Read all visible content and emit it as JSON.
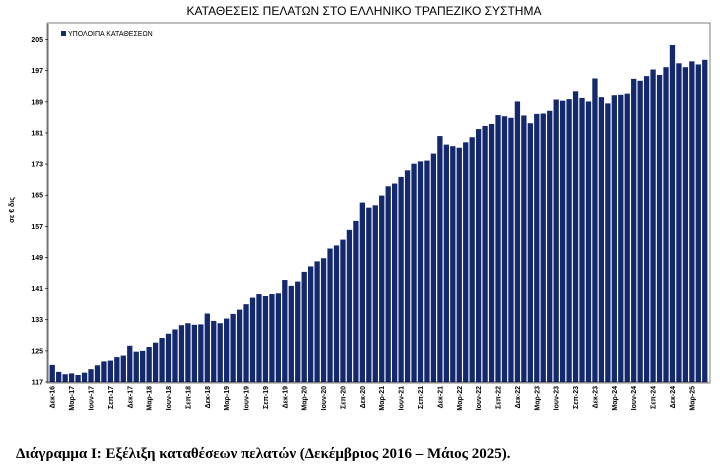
{
  "caption": "Διάγραμμα Ι: Εξέλιξη καταθέσεων πελατών (Δεκέμβριος 2016 – Μάιος 2025).",
  "colors": {
    "bar": "#14286e",
    "frame": "#7f7f7f",
    "axis": "#000000"
  },
  "chart_data": {
    "type": "bar",
    "title": "ΚΑΤΑΘΕΣΕΙΣ ΠΕΛΑΤΩΝ ΣΤΟ ΕΛΛΗΝΙΚΟ ΤΡΑΠΕΖΙΚΟ ΣΥΣΤΗΜΑ",
    "ylabel": "σε € δις",
    "xlabel": "",
    "ylim": [
      117,
      209
    ],
    "yticks": [
      117,
      125,
      133,
      141,
      149,
      157,
      165,
      173,
      181,
      189,
      197,
      205
    ],
    "grid": false,
    "legend": {
      "position": "top-left",
      "entries": [
        "ΥΠΟΛΟΙΠΑ ΚΑΤΑΘΕΣΕΩΝ"
      ]
    },
    "x_tick_labels": [
      {
        "index": 0,
        "label": "Δεκ-16"
      },
      {
        "index": 3,
        "label": "Μαρ-17"
      },
      {
        "index": 6,
        "label": "Ιουν-17"
      },
      {
        "index": 9,
        "label": "Σεπ-17"
      },
      {
        "index": 12,
        "label": "Δεκ-17"
      },
      {
        "index": 15,
        "label": "Μαρ-18"
      },
      {
        "index": 18,
        "label": "Ιουν-18"
      },
      {
        "index": 21,
        "label": "Σεπ-18"
      },
      {
        "index": 24,
        "label": "Δεκ-18"
      },
      {
        "index": 27,
        "label": "Μαρ-19"
      },
      {
        "index": 30,
        "label": "Ιουν-19"
      },
      {
        "index": 33,
        "label": "Σεπ-19"
      },
      {
        "index": 36,
        "label": "Δεκ-19"
      },
      {
        "index": 39,
        "label": "Μαρ-20"
      },
      {
        "index": 42,
        "label": "Ιουν-20"
      },
      {
        "index": 45,
        "label": "Σεπ-20"
      },
      {
        "index": 48,
        "label": "Δεκ-20"
      },
      {
        "index": 51,
        "label": "Μαρ-21"
      },
      {
        "index": 54,
        "label": "Ιουν-21"
      },
      {
        "index": 57,
        "label": "Σεπ-21"
      },
      {
        "index": 60,
        "label": "Δεκ-21"
      },
      {
        "index": 63,
        "label": "Μαρ-22"
      },
      {
        "index": 66,
        "label": "Ιουν-22"
      },
      {
        "index": 69,
        "label": "Σεπ-22"
      },
      {
        "index": 72,
        "label": "Δεκ-22"
      },
      {
        "index": 75,
        "label": "Μαρ-23"
      },
      {
        "index": 78,
        "label": "Ιουν-23"
      },
      {
        "index": 81,
        "label": "Σεπ-23"
      },
      {
        "index": 84,
        "label": "Δεκ-23"
      },
      {
        "index": 87,
        "label": "Μαρ-24"
      },
      {
        "index": 90,
        "label": "Ιουν-24"
      },
      {
        "index": 93,
        "label": "Σεπ-24"
      },
      {
        "index": 96,
        "label": "Δεκ-24"
      },
      {
        "index": 99,
        "label": "Μαρ-25"
      }
    ],
    "series": [
      {
        "name": "ΥΠΟΛΟΙΠΑ ΚΑΤΑΘΕΣΕΩΝ",
        "values": [
          121.4,
          119.6,
          119.0,
          119.2,
          118.8,
          119.4,
          120.3,
          121.3,
          122.3,
          122.5,
          123.4,
          123.8,
          126.3,
          124.8,
          125.0,
          126.0,
          127.1,
          128.3,
          129.4,
          130.5,
          131.6,
          132.1,
          131.7,
          131.8,
          134.6,
          132.7,
          132.1,
          133.3,
          134.5,
          135.6,
          137.0,
          138.7,
          139.6,
          139.1,
          139.6,
          139.8,
          143.2,
          141.7,
          142.8,
          145.3,
          146.7,
          148.0,
          148.8,
          151.3,
          152.1,
          153.6,
          156.1,
          158.4,
          163.1,
          161.8,
          162.4,
          164.9,
          167.3,
          168.0,
          169.7,
          171.4,
          173.1,
          173.7,
          173.9,
          175.7,
          180.2,
          178.0,
          177.6,
          177.2,
          178.6,
          179.9,
          182.0,
          182.8,
          183.3,
          185.6,
          185.3,
          184.9,
          189.1,
          185.5,
          183.5,
          185.9,
          186.0,
          186.7,
          189.6,
          189.3,
          189.7,
          191.7,
          190.0,
          189.1,
          195.0,
          190.2,
          188.6,
          190.7,
          190.8,
          191.1,
          194.9,
          194.4,
          195.6,
          197.3,
          195.9,
          197.9,
          203.6,
          198.9,
          197.9,
          199.4,
          198.6,
          199.8
        ]
      }
    ]
  }
}
